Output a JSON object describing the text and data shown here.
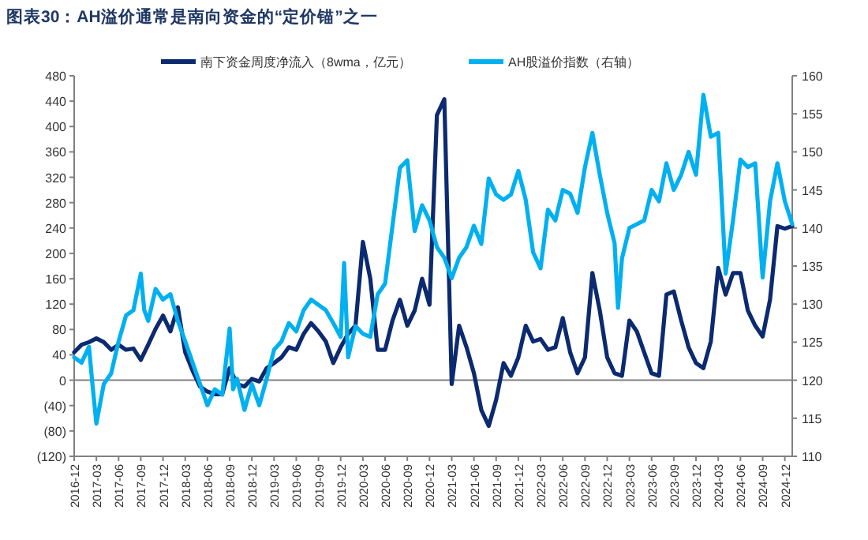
{
  "chart_data": {
    "type": "line",
    "title": "图表30：AH溢价通常是南向资金的“定价锚”之一",
    "legend": "top",
    "xlim": [
      "2016-12",
      "2025-01"
    ],
    "xticks": [
      "2016-12",
      "2017-03",
      "2017-06",
      "2017-09",
      "2017-12",
      "2018-03",
      "2018-06",
      "2018-09",
      "2018-12",
      "2019-03",
      "2019-06",
      "2019-09",
      "2019-12",
      "2020-03",
      "2020-06",
      "2020-09",
      "2020-12",
      "2021-03",
      "2021-06",
      "2021-09",
      "2021-12",
      "2022-03",
      "2022-06",
      "2022-09",
      "2022-12",
      "2023-03",
      "2023-06",
      "2023-09",
      "2023-12",
      "2024-03",
      "2024-06",
      "2024-09",
      "2024-12"
    ],
    "ylim": [
      -120,
      480
    ],
    "yticks": [
      {
        "value": -120,
        "label": "(120)"
      },
      {
        "value": -80,
        "label": "(80)"
      },
      {
        "value": -40,
        "label": "(40)"
      },
      0,
      40,
      80,
      120,
      160,
      200,
      240,
      280,
      320,
      360,
      400,
      440,
      480
    ],
    "y2lim": [
      110,
      160
    ],
    "y2ticks": [
      110,
      115,
      120,
      125,
      130,
      135,
      140,
      145,
      150,
      155,
      160
    ],
    "ref_lines": [
      {
        "axis": "y",
        "value": 0,
        "color": "#808080"
      }
    ],
    "series": [
      {
        "name": "南下资金周度净流入（8wma，亿元）",
        "color": "#0b2a6f",
        "x": [
          "2016-12",
          "2017-01",
          "2017-02",
          "2017-03",
          "2017-04",
          "2017-05",
          "2017-06",
          "2017-07",
          "2017-08",
          "2017-09",
          "2017-10",
          "2017-11",
          "2017-12",
          "2018-01",
          "2018-02",
          "2018-03",
          "2018-04",
          "2018-05",
          "2018-06",
          "2018-07",
          "2018-08",
          "2018-09",
          "2018-10",
          "2018-11",
          "2018-12",
          "2019-01",
          "2019-02",
          "2019-03",
          "2019-04",
          "2019-05",
          "2019-06",
          "2019-07",
          "2019-08",
          "2019-09",
          "2019-10",
          "2019-11",
          "2019-12",
          "2020-01",
          "2020-02",
          "2020-03",
          "2020-04",
          "2020-05",
          "2020-06",
          "2020-07",
          "2020-08",
          "2020-09",
          "2020-10",
          "2020-11",
          "2020-12",
          "2021-01",
          "2021-02",
          "2021-03",
          "2021-04",
          "2021-05",
          "2021-06",
          "2021-07",
          "2021-08",
          "2021-09",
          "2021-10",
          "2021-11",
          "2021-12",
          "2022-01",
          "2022-02",
          "2022-03",
          "2022-04",
          "2022-05",
          "2022-06",
          "2022-07",
          "2022-08",
          "2022-09",
          "2022-10",
          "2022-11",
          "2022-12",
          "2023-01",
          "2023-02",
          "2023-03",
          "2023-04",
          "2023-05",
          "2023-06",
          "2023-07",
          "2023-08",
          "2023-09",
          "2023-10",
          "2023-11",
          "2023-12",
          "2024-01",
          "2024-02",
          "2024-03",
          "2024-04",
          "2024-05",
          "2024-06",
          "2024-07",
          "2024-08",
          "2024-09",
          "2024-10",
          "2024-11",
          "2024-12",
          "2025-01"
        ],
        "values": [
          44,
          56,
          60,
          66,
          60,
          48,
          56,
          48,
          50,
          32,
          56,
          81,
          102,
          77,
          115,
          44,
          15,
          -10,
          -18,
          -22,
          -22,
          19,
          -6,
          -10,
          2,
          -2,
          19,
          27,
          36,
          52,
          48,
          73,
          90,
          77,
          61,
          27,
          52,
          73,
          86,
          218,
          160,
          48,
          48,
          94,
          127,
          86,
          110,
          160,
          119,
          418,
          443,
          -6,
          86,
          52,
          11,
          -47,
          -72,
          -31,
          27,
          7,
          36,
          86,
          61,
          65,
          48,
          52,
          98,
          44,
          11,
          36,
          169,
          110,
          36,
          11,
          7,
          94,
          77,
          44,
          11,
          7,
          135,
          140,
          94,
          52,
          27,
          19,
          61,
          177,
          135,
          169,
          169,
          110,
          86,
          69,
          127,
          243,
          239,
          243
        ]
      },
      {
        "name": "AH股溢价指数（右轴）",
        "color": "#00b0f0",
        "axis": "y2",
        "x": [
          "2016-12",
          "2017-01",
          "2017-02",
          "2017-02-15",
          "2017-03",
          "2017-04",
          "2017-05",
          "2017-06",
          "2017-07",
          "2017-08",
          "2017-09",
          "2017-09-15",
          "2017-10",
          "2017-11",
          "2017-12",
          "2018-01",
          "2018-02",
          "2018-03",
          "2018-04",
          "2018-05",
          "2018-06",
          "2018-07",
          "2018-08",
          "2018-09",
          "2018-09-15",
          "2018-10",
          "2018-11",
          "2018-12",
          "2019-01",
          "2019-02",
          "2019-03",
          "2019-04",
          "2019-05",
          "2019-06",
          "2019-07",
          "2019-08",
          "2019-09",
          "2019-10",
          "2019-11",
          "2019-12",
          "2019-12-15",
          "2020-01",
          "2020-02",
          "2020-03",
          "2020-04",
          "2020-05",
          "2020-06",
          "2020-07",
          "2020-08",
          "2020-09",
          "2020-10",
          "2020-11",
          "2020-12",
          "2021-01",
          "2021-02",
          "2021-03",
          "2021-04",
          "2021-05",
          "2021-06",
          "2021-07",
          "2021-08",
          "2021-09",
          "2021-10",
          "2021-11",
          "2021-12",
          "2022-01",
          "2022-02",
          "2022-03",
          "2022-04",
          "2022-05",
          "2022-06",
          "2022-07",
          "2022-08",
          "2022-09",
          "2022-10",
          "2022-11",
          "2022-12",
          "2023-01",
          "2023-01-15",
          "2023-02",
          "2023-03",
          "2023-04",
          "2023-05",
          "2023-06",
          "2023-07",
          "2023-08",
          "2023-09",
          "2023-10",
          "2023-11",
          "2023-12",
          "2024-01",
          "2024-02",
          "2024-03",
          "2024-04",
          "2024-05",
          "2024-06",
          "2024-07",
          "2024-08",
          "2024-09",
          "2024-10",
          "2024-11",
          "2024-12",
          "2025-01"
        ],
        "values": [
          123.0,
          122.3,
          124.4,
          119.5,
          114.3,
          119.5,
          120.9,
          125.1,
          128.5,
          129.2,
          134.0,
          129.2,
          127.8,
          132.0,
          130.6,
          131.3,
          127.8,
          125.1,
          122.3,
          119.5,
          116.7,
          118.8,
          118.1,
          126.8,
          118.8,
          120.2,
          116.1,
          119.5,
          116.7,
          120.2,
          124.0,
          125.1,
          127.5,
          126.4,
          129.2,
          130.6,
          129.9,
          129.2,
          127.5,
          125.7,
          135.4,
          123.0,
          127.1,
          126.1,
          125.7,
          131.3,
          132.7,
          140.3,
          147.9,
          148.9,
          139.6,
          143.0,
          141.0,
          137.5,
          136.1,
          133.4,
          136.1,
          137.5,
          140.3,
          137.9,
          146.5,
          144.4,
          143.7,
          144.4,
          147.5,
          143.7,
          136.8,
          134.7,
          142.4,
          141.0,
          145.0,
          144.5,
          142.0,
          148.0,
          152.5,
          147.0,
          142.0,
          138.0,
          129.5,
          136.0,
          140.0,
          140.5,
          141.0,
          145.0,
          143.5,
          148.5,
          145.0,
          147.0,
          150.0,
          147.0,
          157.5,
          152.0,
          152.5,
          134.0,
          141.0,
          149.0,
          148.0,
          148.5,
          133.5,
          143.5,
          148.5,
          143.5,
          140.5
        ]
      }
    ]
  }
}
